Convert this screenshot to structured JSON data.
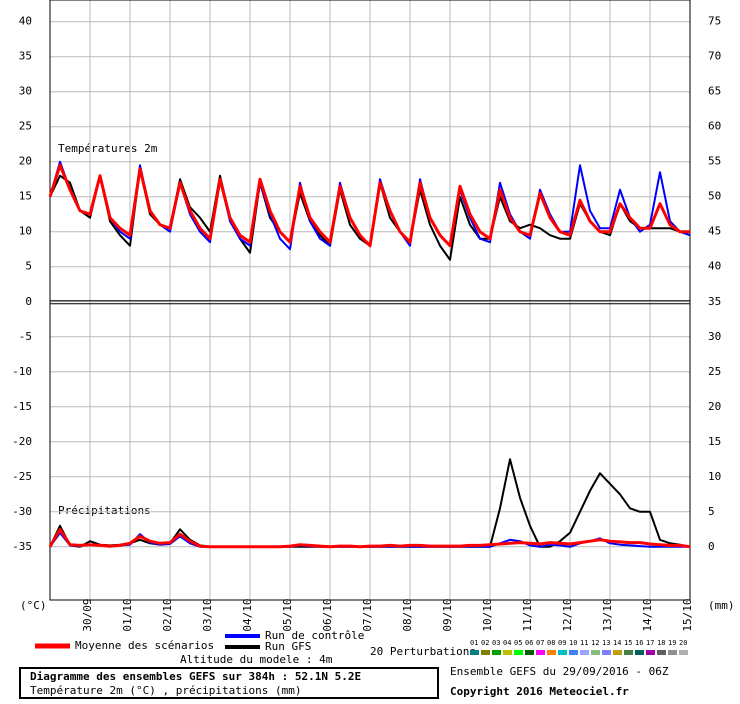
{
  "chart_data": {
    "type": "line",
    "title": "Diagramme des ensembles GEFS sur 384h : 52.1N 5.2E",
    "subtitle": "Température 2m (°C) , précipitations (mm)",
    "run_info": "Ensemble GEFS du 29/09/2016 - 06Z",
    "copyright": "Copyright 2016 Meteociel.fr",
    "altitude": "Altitude du modele : 4m",
    "panel_labels": [
      "Températures 2m",
      "Précipitations"
    ],
    "y_label": "(°C)",
    "y2_label": "(mm)",
    "grid": true,
    "xlim": [
      0,
      64
    ],
    "xticks": [
      {
        "value": 4,
        "label": "30/09"
      },
      {
        "value": 8,
        "label": "01/10"
      },
      {
        "value": 12,
        "label": "02/10"
      },
      {
        "value": 16,
        "label": "03/10"
      },
      {
        "value": 20,
        "label": "04/10"
      },
      {
        "value": 24,
        "label": "05/10"
      },
      {
        "value": 28,
        "label": "06/10"
      },
      {
        "value": 32,
        "label": "07/10"
      },
      {
        "value": 36,
        "label": "08/10"
      },
      {
        "value": 40,
        "label": "09/10"
      },
      {
        "value": 44,
        "label": "10/10"
      },
      {
        "value": 48,
        "label": "11/10"
      },
      {
        "value": 52,
        "label": "12/10"
      },
      {
        "value": 56,
        "label": "13/10"
      },
      {
        "value": 60,
        "label": "14/10"
      },
      {
        "value": 64,
        "label": "15/10"
      }
    ],
    "ylim": [
      -42.6,
      43.1
    ],
    "yticks": [
      40,
      35,
      30,
      25,
      20,
      15,
      10,
      5,
      0,
      -5,
      -10,
      -15,
      -20,
      -25,
      -30,
      -35
    ],
    "y2lim": [
      -7.6,
      78.1
    ],
    "y2ticks": [
      75,
      70,
      65,
      60,
      55,
      50,
      45,
      40,
      35,
      30,
      25,
      20,
      15,
      10,
      5,
      0
    ],
    "series": [
      {
        "name": "Moyenne des scénarios",
        "color": "#ff0000",
        "values": [
          15,
          19.5,
          16,
          13,
          12.5,
          18,
          12,
          10.5,
          9.5,
          19,
          13,
          11,
          10.5,
          17,
          13,
          10.5,
          9,
          17.5,
          12,
          9.5,
          8.5,
          17.5,
          13,
          10,
          8.5,
          16.5,
          12,
          10,
          8.5,
          16.5,
          12,
          9.5,
          8,
          17,
          13,
          10,
          8.5,
          17,
          12,
          9.5,
          8,
          16.5,
          12.5,
          10,
          9,
          16,
          12,
          10,
          9.5,
          15.5,
          12,
          10,
          9.5,
          14.5,
          11.5,
          10,
          10,
          14,
          12,
          10.5,
          10.5,
          14,
          11,
          10,
          10
        ]
      },
      {
        "name": "Run de contrôle",
        "color": "#0000ff",
        "values": [
          15,
          20,
          16,
          13,
          12.5,
          18,
          12,
          10,
          9,
          19.5,
          13,
          11,
          10,
          17,
          12.5,
          10,
          8.5,
          17.5,
          11.5,
          9,
          8,
          17,
          12.5,
          9,
          7.5,
          17,
          11.5,
          9,
          8,
          17,
          12,
          9.5,
          8,
          17.5,
          13,
          10,
          8,
          17.5,
          12,
          9.5,
          8,
          16,
          12,
          9,
          8.5,
          17,
          12.5,
          10,
          9,
          16,
          12.5,
          10,
          10,
          19.5,
          13,
          10.5,
          10.5,
          16,
          12,
          10,
          11,
          18.5,
          11.5,
          10,
          9.5
        ]
      },
      {
        "name": "Run GFS",
        "color": "#000000",
        "values": [
          15,
          18,
          17,
          13,
          12,
          18,
          11.5,
          9.5,
          8,
          19,
          12.5,
          11,
          10.5,
          17.5,
          13.5,
          12,
          10,
          18,
          12,
          9,
          7,
          17,
          12,
          10,
          8.5,
          15.5,
          11.5,
          9.5,
          8,
          16,
          11,
          9,
          8,
          17,
          12,
          10,
          8.5,
          16,
          11,
          8,
          6,
          15,
          11,
          9,
          9,
          15,
          11.5,
          10.5,
          11,
          10.5,
          9.5,
          9,
          9,
          14,
          11.5,
          10,
          9.5,
          14,
          11.5,
          10.5,
          10.5,
          10.5,
          10.5,
          10,
          9.5
        ]
      },
      {
        "name": "Moyenne des scénarios",
        "color": "#ff0000",
        "axis": "y2",
        "values": [
          0,
          2.5,
          0.3,
          0.2,
          0.3,
          0.2,
          0.1,
          0.2,
          0.5,
          1.5,
          0.8,
          0.5,
          0.6,
          1.8,
          0.8,
          0.1,
          0,
          0,
          0,
          0,
          0,
          0,
          0,
          0,
          0.1,
          0.3,
          0.2,
          0.1,
          0,
          0.1,
          0.1,
          0,
          0.1,
          0.1,
          0.2,
          0.1,
          0.2,
          0.2,
          0.1,
          0.1,
          0.1,
          0.1,
          0.2,
          0.2,
          0.3,
          0.4,
          0.5,
          0.6,
          0.5,
          0.4,
          0.6,
          0.5,
          0.4,
          0.6,
          0.8,
          1,
          0.8,
          0.7,
          0.6,
          0.6,
          0.4,
          0.3,
          0.2,
          0.2,
          0
        ]
      },
      {
        "name": "Run de contrôle",
        "color": "#0000ff",
        "axis": "y2",
        "values": [
          0,
          2,
          0.2,
          0.1,
          0.3,
          0.2,
          0,
          0.2,
          0.3,
          1.8,
          0.6,
          0.3,
          0.4,
          1.5,
          0.5,
          0,
          0,
          0,
          0,
          0,
          0,
          0,
          0,
          0,
          0,
          0.2,
          0.1,
          0,
          0,
          0,
          0,
          0,
          0,
          0,
          0,
          0,
          0,
          0,
          0,
          0,
          0,
          0,
          0,
          0,
          0,
          0.5,
          1,
          0.8,
          0.2,
          0,
          0.3,
          0.2,
          0,
          0.5,
          0.8,
          1.2,
          0.5,
          0.3,
          0.2,
          0.1,
          0,
          0,
          0,
          0,
          0
        ]
      },
      {
        "name": "Run GFS",
        "color": "#000000",
        "axis": "y2",
        "values": [
          0,
          3,
          0.2,
          0,
          0.8,
          0.3,
          0.2,
          0.3,
          0.5,
          1,
          0.5,
          0.3,
          0.5,
          2.5,
          1,
          0.2,
          0,
          0,
          0,
          0,
          0,
          0,
          0,
          0,
          0,
          0,
          0,
          0,
          0,
          0,
          0,
          0,
          0,
          0,
          0,
          0,
          0,
          0,
          0,
          0,
          0,
          0,
          0,
          0,
          0,
          5.5,
          12.5,
          7,
          3,
          0,
          0,
          0.8,
          2,
          5,
          8,
          10.5,
          9,
          7.5,
          5.5,
          5,
          5,
          1,
          0.5,
          0.3,
          0
        ]
      }
    ],
    "perturbations": {
      "label": "20 Perturbations",
      "members": [
        {
          "name": "01",
          "color": "#008080"
        },
        {
          "name": "02",
          "color": "#808000"
        },
        {
          "name": "03",
          "color": "#00a000"
        },
        {
          "name": "04",
          "color": "#c0c000"
        },
        {
          "name": "05",
          "color": "#00ff00"
        },
        {
          "name": "06",
          "color": "#006000"
        },
        {
          "name": "07",
          "color": "#ff00ff"
        },
        {
          "name": "08",
          "color": "#ff8000"
        },
        {
          "name": "09",
          "color": "#00c0c0"
        },
        {
          "name": "10",
          "color": "#4080ff"
        },
        {
          "name": "11",
          "color": "#a0a0ff"
        },
        {
          "name": "12",
          "color": "#80c080"
        },
        {
          "name": "13",
          "color": "#8080ff"
        },
        {
          "name": "14",
          "color": "#c0a000"
        },
        {
          "name": "15",
          "color": "#408040"
        },
        {
          "name": "16",
          "color": "#006060"
        },
        {
          "name": "17",
          "color": "#a000a0"
        },
        {
          "name": "18",
          "color": "#606060"
        },
        {
          "name": "19",
          "color": "#909090"
        },
        {
          "name": "20",
          "color": "#b0b0b0"
        }
      ]
    }
  }
}
